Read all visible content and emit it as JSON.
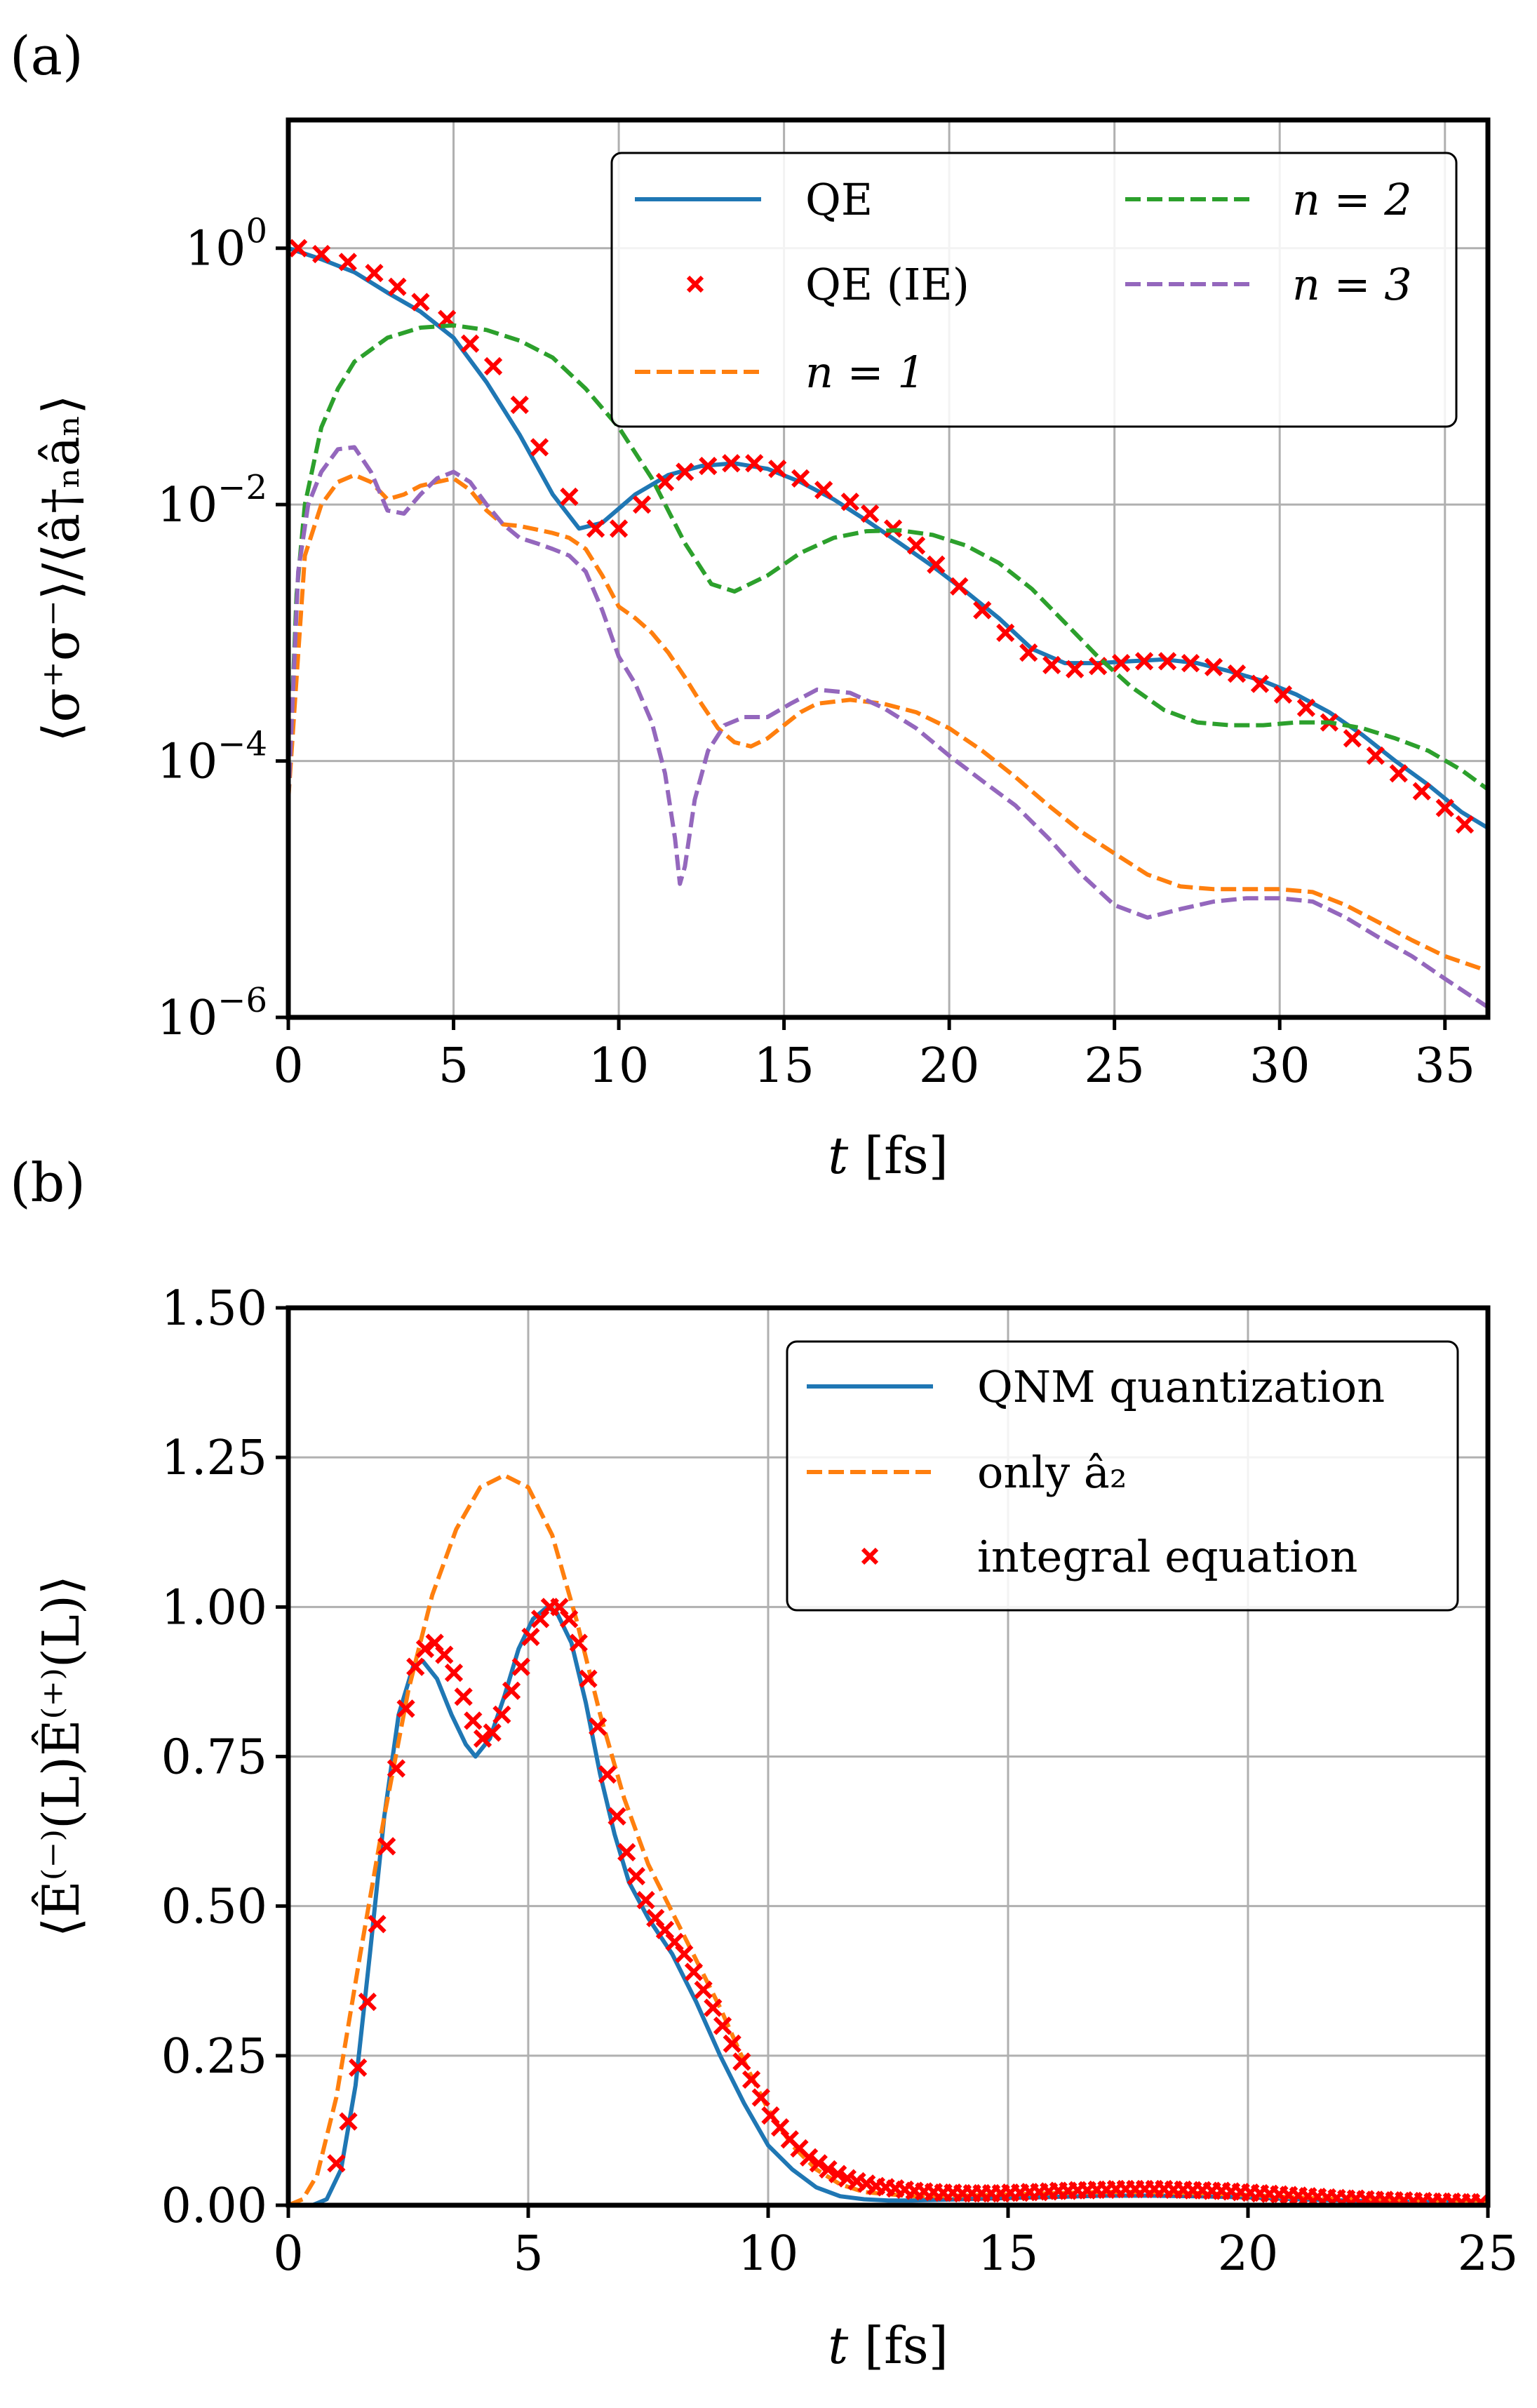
{
  "chart_data": [
    {
      "panel_label": "(a)",
      "type": "line",
      "yscale": "log",
      "xlabel": "t [fs]",
      "ylabel": "⟨σ⁺σ⁻⟩/⟨â†ₙâₙ⟩",
      "xlim": [
        0,
        36.3
      ],
      "ylim_exponent": [
        -6,
        1
      ],
      "xticks": [
        "0",
        "5",
        "10",
        "15",
        "20",
        "25",
        "30",
        "35"
      ],
      "yticks": [
        {
          "base": "10",
          "exp": "0"
        },
        {
          "base": "10",
          "exp": "−2"
        },
        {
          "base": "10",
          "exp": "−4"
        },
        {
          "base": "10",
          "exp": "−6"
        }
      ],
      "grid": true,
      "legend": "top-right",
      "series": [
        {
          "name": "QE",
          "color": "#1f77b4",
          "style": "solid",
          "x": [
            0,
            1,
            2,
            3,
            4,
            5,
            6,
            7,
            8,
            8.8,
            9.5,
            10.5,
            11.5,
            12.5,
            13.5,
            14.5,
            15.5,
            16.5,
            17.5,
            18.5,
            19.5,
            20.5,
            21.5,
            22.5,
            23.5,
            24.5,
            25.5,
            26.5,
            27.5,
            28.5,
            29.5,
            30.5,
            31.5,
            32.5,
            33.5,
            34.5,
            35.5,
            36.3
          ],
          "y": [
            1.0,
            0.82,
            0.65,
            0.45,
            0.32,
            0.2,
            0.09,
            0.035,
            0.012,
            0.0065,
            0.0072,
            0.012,
            0.017,
            0.02,
            0.021,
            0.019,
            0.015,
            0.011,
            0.0075,
            0.005,
            0.0033,
            0.0021,
            0.0013,
            0.00075,
            0.00058,
            0.00058,
            0.0006,
            0.00062,
            0.00058,
            0.0005,
            0.00042,
            0.00033,
            0.00024,
            0.00016,
            0.0001,
            6.5e-05,
            4e-05,
            3e-05
          ]
        },
        {
          "name": "QE (IE)",
          "color": "#ff0000",
          "style": "x-markers",
          "x": [
            0.3,
            1,
            1.8,
            2.6,
            3.3,
            4,
            4.8,
            5.5,
            6.2,
            7,
            7.6,
            8.5,
            9.3,
            10,
            10.7,
            11.4,
            12,
            12.7,
            13.4,
            14.1,
            14.8,
            15.5,
            16.2,
            17,
            17.6,
            18.3,
            19,
            19.6,
            20.3,
            21,
            21.7,
            22.4,
            23.1,
            23.8,
            24.5,
            25.2,
            25.9,
            26.6,
            27.3,
            28,
            28.7,
            29.4,
            30.1,
            30.8,
            31.5,
            32.2,
            32.9,
            33.6,
            34.3,
            35,
            35.6
          ],
          "y": [
            1.0,
            0.9,
            0.78,
            0.64,
            0.5,
            0.38,
            0.28,
            0.18,
            0.12,
            0.06,
            0.028,
            0.0115,
            0.0065,
            0.0065,
            0.01,
            0.015,
            0.018,
            0.02,
            0.021,
            0.021,
            0.019,
            0.016,
            0.013,
            0.0105,
            0.0085,
            0.0065,
            0.0048,
            0.0034,
            0.0023,
            0.0015,
            0.001,
            0.0007,
            0.00056,
            0.00052,
            0.00055,
            0.00058,
            0.0006,
            0.0006,
            0.00058,
            0.00054,
            0.00048,
            0.0004,
            0.00033,
            0.00026,
            0.0002,
            0.00015,
            0.00011,
            8e-05,
            5.8e-05,
            4.3e-05,
            3.2e-05
          ]
        },
        {
          "name": "n = 1",
          "color": "#ff7f0e",
          "style": "dashed",
          "x": [
            0,
            0.5,
            1,
            1.5,
            2,
            2.5,
            3,
            3.5,
            4,
            4.5,
            5,
            5.5,
            6,
            6.5,
            7,
            7.5,
            8,
            8.5,
            9,
            9.5,
            10,
            10.5,
            11,
            11.5,
            12,
            12.5,
            13,
            13.5,
            14,
            14.5,
            15,
            15.5,
            16,
            17,
            18,
            19,
            20,
            21,
            22,
            23,
            24,
            25,
            26,
            27,
            28,
            29,
            30,
            31,
            32,
            33,
            34,
            35,
            36.3
          ],
          "y": [
            5e-05,
            0.004,
            0.01,
            0.015,
            0.017,
            0.015,
            0.011,
            0.012,
            0.014,
            0.015,
            0.016,
            0.013,
            0.009,
            0.007,
            0.0068,
            0.0064,
            0.006,
            0.0055,
            0.0045,
            0.0028,
            0.0016,
            0.0013,
            0.001,
            0.0007,
            0.00045,
            0.00028,
            0.00018,
            0.00014,
            0.00013,
            0.00015,
            0.00019,
            0.00024,
            0.00028,
            0.0003,
            0.00028,
            0.00024,
            0.00018,
            0.00012,
            7.5e-05,
            4.5e-05,
            2.8e-05,
            1.9e-05,
            1.3e-05,
            1.05e-05,
            1e-05,
            1e-05,
            1e-05,
            9.5e-06,
            7.5e-06,
            5.5e-06,
            4e-06,
            3e-06,
            2.3e-06
          ]
        },
        {
          "name": "n = 2",
          "color": "#2ca02c",
          "style": "dashed",
          "x": [
            0,
            0.25,
            0.5,
            1,
            1.5,
            2,
            3,
            4,
            5,
            6,
            7,
            8,
            9,
            10,
            11,
            12,
            12.8,
            13.5,
            14.5,
            15.5,
            16.5,
            17.5,
            18.5,
            19.5,
            20.5,
            21.5,
            22.5,
            23.5,
            24.5,
            25.5,
            26.5,
            27.5,
            28.5,
            29.5,
            30.5,
            31.5,
            32.5,
            33.5,
            34.5,
            35.5,
            36.3
          ],
          "y": [
            5e-05,
            0.002,
            0.01,
            0.04,
            0.08,
            0.13,
            0.2,
            0.24,
            0.25,
            0.23,
            0.19,
            0.14,
            0.08,
            0.04,
            0.016,
            0.005,
            0.0024,
            0.0021,
            0.0028,
            0.0042,
            0.0055,
            0.0062,
            0.0063,
            0.0058,
            0.0048,
            0.0035,
            0.0022,
            0.0012,
            0.00065,
            0.00038,
            0.00025,
            0.0002,
            0.00019,
            0.00019,
            0.0002,
            0.0002,
            0.00018,
            0.00015,
            0.00012,
            8.5e-05,
            6e-05
          ]
        },
        {
          "name": "n = 3",
          "color": "#9467bd",
          "style": "dashed",
          "x": [
            0,
            0.3,
            0.6,
            1,
            1.5,
            2,
            2.5,
            3,
            3.5,
            4,
            4.5,
            5,
            5.5,
            6,
            6.5,
            7,
            7.5,
            8,
            8.5,
            9,
            9.5,
            10,
            10.5,
            11,
            11.4,
            11.7,
            11.85,
            12,
            12.3,
            12.7,
            13.2,
            13.8,
            14.5,
            15.2,
            16,
            17,
            18,
            19,
            20,
            21,
            22,
            23,
            24,
            25,
            26,
            27,
            28,
            29,
            30,
            31,
            32,
            33,
            34,
            35,
            36.3
          ],
          "y": [
            5e-05,
            0.003,
            0.01,
            0.018,
            0.027,
            0.028,
            0.018,
            0.009,
            0.0085,
            0.012,
            0.016,
            0.018,
            0.015,
            0.01,
            0.007,
            0.0055,
            0.005,
            0.0045,
            0.004,
            0.003,
            0.0015,
            0.00065,
            0.0004,
            0.0002,
            8e-05,
            2.5e-05,
            1.1e-05,
            1.5e-05,
            5e-05,
            0.00012,
            0.00019,
            0.00022,
            0.00022,
            0.00028,
            0.00036,
            0.00034,
            0.00026,
            0.00018,
            0.00011,
            7e-05,
            4.5e-05,
            2.5e-05,
            1.3e-05,
            7.5e-06,
            6e-06,
            7e-06,
            8e-06,
            8.5e-06,
            8.5e-06,
            8e-06,
            6e-06,
            4.2e-06,
            3e-06,
            2e-06,
            1.2e-06
          ]
        }
      ]
    },
    {
      "panel_label": "(b)",
      "type": "line",
      "yscale": "linear",
      "xlabel": "t [fs]",
      "ylabel": "⟨Ê⁽⁻⁾(L)Ê⁽⁺⁾(L)⟩",
      "xlim": [
        0,
        25
      ],
      "ylim": [
        0,
        1.5
      ],
      "xticks": [
        "0",
        "5",
        "10",
        "15",
        "20",
        "25"
      ],
      "yticks": [
        "0.00",
        "0.25",
        "0.50",
        "0.75",
        "1.00",
        "1.25",
        "1.50"
      ],
      "grid": true,
      "legend": "top-right",
      "series": [
        {
          "name": "QNM quantization",
          "color": "#1f77b4",
          "style": "solid",
          "x": [
            0,
            0.5,
            0.8,
            1.1,
            1.4,
            1.7,
            2,
            2.3,
            2.6,
            2.8,
            3.1,
            3.4,
            3.7,
            3.9,
            4.2,
            4.5,
            4.8,
            5.1,
            5.4,
            5.6,
            5.9,
            6.2,
            6.5,
            6.8,
            7.1,
            7.5,
            8,
            8.5,
            9,
            9.5,
            10,
            10.5,
            11,
            11.5,
            12,
            12.5,
            13,
            14,
            15,
            16,
            17,
            18,
            19,
            20,
            21,
            22,
            23,
            24,
            25
          ],
          "y": [
            0,
            0,
            0.01,
            0.06,
            0.2,
            0.42,
            0.65,
            0.82,
            0.9,
            0.91,
            0.88,
            0.82,
            0.77,
            0.75,
            0.78,
            0.85,
            0.93,
            0.98,
            1.0,
            0.99,
            0.94,
            0.84,
            0.72,
            0.62,
            0.54,
            0.48,
            0.42,
            0.34,
            0.25,
            0.17,
            0.1,
            0.06,
            0.03,
            0.015,
            0.01,
            0.008,
            0.008,
            0.01,
            0.012,
            0.014,
            0.016,
            0.016,
            0.015,
            0.013,
            0.01,
            0.008,
            0.006,
            0.005,
            0.004
          ]
        },
        {
          "name": "only â₂",
          "color": "#ff7f0e",
          "style": "dashed",
          "x": [
            0,
            0.3,
            0.6,
            1,
            1.5,
            2,
            2.5,
            3,
            3.5,
            4,
            4.5,
            5,
            5.5,
            6,
            6.5,
            7,
            7.5,
            8,
            8.5,
            9,
            9.5,
            10,
            10.5,
            11,
            11.5,
            12,
            13,
            14,
            15,
            16,
            17,
            18,
            19,
            20,
            21,
            22,
            23,
            24,
            25
          ],
          "y": [
            0,
            0.01,
            0.05,
            0.18,
            0.42,
            0.65,
            0.86,
            1.02,
            1.13,
            1.2,
            1.22,
            1.2,
            1.12,
            0.98,
            0.82,
            0.68,
            0.57,
            0.49,
            0.41,
            0.33,
            0.24,
            0.16,
            0.1,
            0.06,
            0.035,
            0.022,
            0.015,
            0.016,
            0.018,
            0.02,
            0.022,
            0.022,
            0.02,
            0.017,
            0.013,
            0.01,
            0.008,
            0.006,
            0.005
          ]
        },
        {
          "name": "integral equation",
          "color": "#ff0000",
          "style": "x-markers",
          "x": [
            1.0,
            1.25,
            1.45,
            1.65,
            1.85,
            2.05,
            2.25,
            2.45,
            2.65,
            2.85,
            3.05,
            3.25,
            3.45,
            3.65,
            3.85,
            4.05,
            4.25,
            4.45,
            4.65,
            4.85,
            5.05,
            5.25,
            5.45,
            5.65,
            5.85,
            6.05,
            6.25,
            6.45,
            6.65,
            6.85,
            7.05,
            7.25,
            7.45,
            7.65,
            7.85,
            8.05,
            8.25,
            8.45,
            8.65,
            8.85,
            9.05,
            9.25,
            9.45,
            9.65,
            9.85,
            10.05,
            10.25,
            10.45,
            10.65,
            10.85,
            11.05,
            11.25,
            11.45,
            11.65,
            11.85,
            12.05,
            12.25,
            12.45,
            12.65,
            12.85,
            13.05,
            13.25,
            13.45,
            13.65,
            13.85,
            14.05,
            14.25,
            14.45,
            14.65,
            14.85,
            15.05,
            15.25,
            15.45,
            15.65,
            15.85,
            16.05,
            16.25,
            16.45,
            16.65,
            16.85,
            17.05,
            17.25,
            17.45,
            17.65,
            17.85,
            18.05,
            18.25,
            18.45,
            18.65,
            18.85,
            19.05,
            19.25,
            19.45,
            19.65,
            19.85,
            20.05,
            20.25,
            20.45,
            20.65,
            20.85,
            21.05,
            21.25,
            21.45,
            21.65,
            21.85,
            22.05,
            22.25,
            22.45,
            22.65,
            22.85,
            23.05,
            23.25,
            23.45,
            23.65,
            23.85,
            24.05,
            24.25,
            24.45,
            24.65,
            24.85
          ],
          "y": [
            0.07,
            0.14,
            0.23,
            0.34,
            0.47,
            0.6,
            0.73,
            0.83,
            0.9,
            0.93,
            0.94,
            0.92,
            0.89,
            0.85,
            0.81,
            0.78,
            0.79,
            0.82,
            0.86,
            0.9,
            0.95,
            0.98,
            1.0,
            1.0,
            0.98,
            0.94,
            0.88,
            0.8,
            0.72,
            0.65,
            0.59,
            0.55,
            0.51,
            0.48,
            0.46,
            0.44,
            0.42,
            0.39,
            0.36,
            0.33,
            0.3,
            0.27,
            0.24,
            0.21,
            0.18,
            0.15,
            0.13,
            0.11,
            0.095,
            0.08,
            0.07,
            0.06,
            0.052,
            0.045,
            0.04,
            0.036,
            0.032,
            0.03,
            0.028,
            0.026,
            0.024,
            0.023,
            0.022,
            0.021,
            0.021,
            0.02,
            0.02,
            0.02,
            0.02,
            0.02,
            0.021,
            0.021,
            0.022,
            0.022,
            0.023,
            0.024,
            0.024,
            0.025,
            0.025,
            0.026,
            0.026,
            0.027,
            0.027,
            0.027,
            0.027,
            0.027,
            0.027,
            0.026,
            0.026,
            0.025,
            0.025,
            0.024,
            0.024,
            0.023,
            0.022,
            0.021,
            0.02,
            0.019,
            0.018,
            0.017,
            0.016,
            0.015,
            0.014,
            0.013,
            0.012,
            0.011,
            0.011,
            0.01,
            0.009,
            0.009,
            0.008,
            0.008,
            0.007,
            0.007,
            0.006,
            0.006,
            0.006,
            0.005,
            0.005,
            0.005
          ]
        }
      ]
    }
  ]
}
